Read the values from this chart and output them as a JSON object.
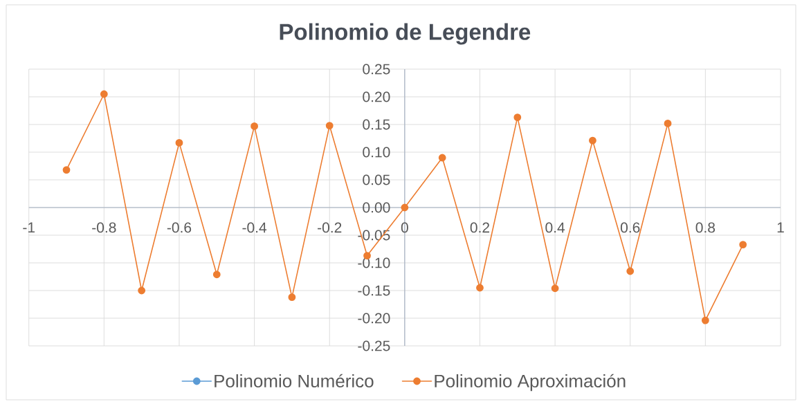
{
  "chart_data": {
    "type": "line",
    "title": "Polinomio de Legendre",
    "x": [
      -0.9,
      -0.8,
      -0.7,
      -0.6,
      -0.5,
      -0.4,
      -0.3,
      -0.2,
      -0.1,
      0,
      0.1,
      0.2,
      0.3,
      0.4,
      0.5,
      0.6,
      0.7,
      0.8,
      0.9
    ],
    "series": [
      {
        "name": "Polinomio Numérico",
        "color": "#5b9bd5",
        "values": [
          null,
          null,
          null,
          null,
          null,
          null,
          null,
          null,
          null,
          null,
          null,
          null,
          null,
          null,
          null,
          null,
          null,
          null,
          null
        ]
      },
      {
        "name": "Polinomio Aproximación",
        "color": "#ed7d31",
        "values": [
          0.068,
          0.205,
          -0.15,
          0.117,
          -0.121,
          0.147,
          -0.162,
          0.148,
          -0.087,
          0,
          0.09,
          -0.145,
          0.163,
          -0.146,
          0.121,
          -0.115,
          0.152,
          -0.204,
          -0.067
        ]
      }
    ],
    "xlim": [
      -1,
      1
    ],
    "xticks": [
      -1,
      -0.8,
      -0.6,
      -0.4,
      -0.2,
      0,
      0.2,
      0.4,
      0.6,
      0.8,
      1
    ],
    "ylim": [
      -0.25,
      0.25
    ],
    "yticks": [
      {
        "value": -0.25,
        "label": "-0.25"
      },
      {
        "value": -0.2,
        "label": "-0.20"
      },
      {
        "value": -0.15,
        "label": "-0.15"
      },
      {
        "value": -0.1,
        "label": "-0.10"
      },
      {
        "value": -0.05,
        "label": "-0.05"
      },
      {
        "value": 0,
        "label": "0.00"
      },
      {
        "value": 0.05,
        "label": "0.05"
      },
      {
        "value": 0.1,
        "label": "0.10"
      },
      {
        "value": 0.15,
        "label": "0.15"
      },
      {
        "value": 0.2,
        "label": "0.20"
      },
      {
        "value": 0.25,
        "label": "0.25"
      }
    ],
    "grid": true,
    "legend": "bottom",
    "marker": "circle",
    "line_style": "solid"
  }
}
